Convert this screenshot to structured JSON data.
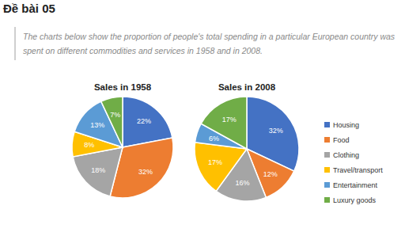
{
  "header": "Đề bài 05",
  "description": "The charts below show the proportion of people's total spending in a particular European country was spent on different commodities and services in 1958 and in 2008.",
  "chart_data": [
    {
      "type": "pie",
      "title": "Sales in 1958",
      "categories": [
        "Housing",
        "Food",
        "Clothing",
        "Travel/transport",
        "Entertainment",
        "Luxury goods"
      ],
      "values": [
        22,
        32,
        18,
        8,
        13,
        7
      ],
      "value_labels": [
        "22%",
        "32%",
        "18%",
        "8%",
        "13%",
        "7%"
      ],
      "colors": [
        "#4472c4",
        "#ed7d31",
        "#a5a5a5",
        "#ffc000",
        "#5b9bd5",
        "#70ad47"
      ],
      "data_labels": true
    },
    {
      "type": "pie",
      "title": "Sales in 2008",
      "categories": [
        "Housing",
        "Food",
        "Clothing",
        "Travel/transport",
        "Entertainment",
        "Luxury goods"
      ],
      "values": [
        32,
        12,
        16,
        17,
        6,
        17
      ],
      "value_labels": [
        "32%",
        "12%",
        "16%",
        "17%",
        "6%",
        "17%"
      ],
      "colors": [
        "#4472c4",
        "#ed7d31",
        "#a5a5a5",
        "#ffc000",
        "#5b9bd5",
        "#70ad47"
      ],
      "data_labels": true,
      "legend": "right"
    }
  ]
}
